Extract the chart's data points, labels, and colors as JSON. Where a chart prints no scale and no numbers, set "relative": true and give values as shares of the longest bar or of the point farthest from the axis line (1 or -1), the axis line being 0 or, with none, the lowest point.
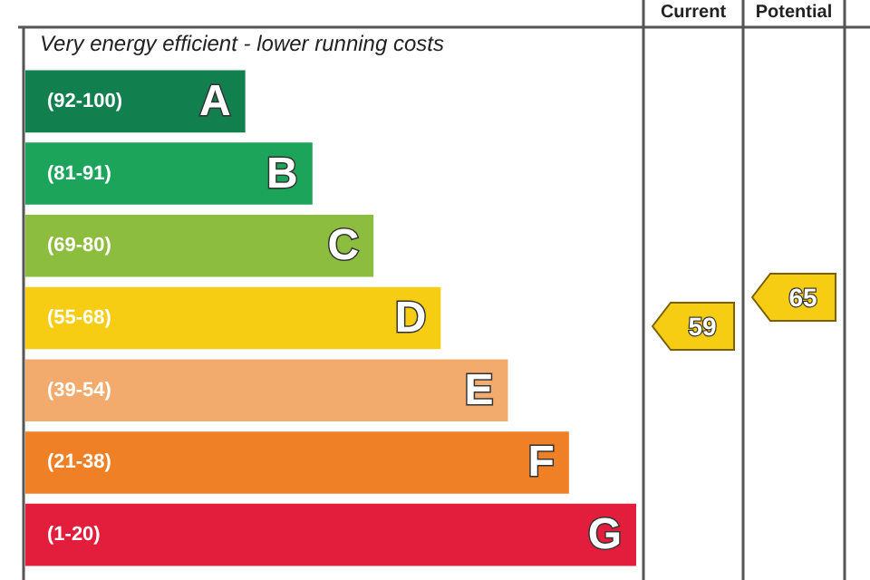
{
  "chart_data": {
    "type": "bar",
    "orientation": "horizontal",
    "relative": true,
    "categories": [
      "(92-100)",
      "(81-91)",
      "(69-80)",
      "(55-68)",
      "(39-54)",
      "(21-38)",
      "(1-20)"
    ],
    "values": [
      0.36,
      0.47,
      0.57,
      0.68,
      0.79,
      0.89,
      1
    ],
    "colors": [
      "#127f4e",
      "#1ca55a",
      "#8cbd3f",
      "#f7cd14",
      "#f2aa6d",
      "#ef8025",
      "#e31d3c"
    ],
    "annotations": [
      "Very energy efficient - lower running costs",
      "Current",
      "Potential",
      "59",
      "65",
      "A",
      "B",
      "C",
      "D",
      "E",
      "F",
      "G"
    ]
  }
}
